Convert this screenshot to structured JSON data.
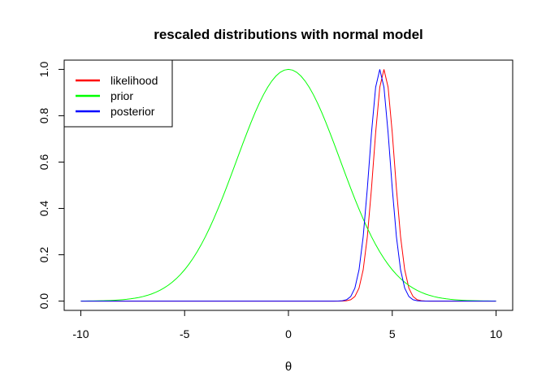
{
  "chart_data": {
    "type": "line",
    "title": "rescaled distributions with normal model",
    "xlabel": "θ",
    "ylabel": "",
    "xlim": [
      -10.8,
      10.8
    ],
    "ylim": [
      -0.04,
      1.04
    ],
    "x_ticks": [
      "-10",
      "-5",
      "0",
      "5",
      "10"
    ],
    "y_ticks": [
      "0.0",
      "0.2",
      "0.4",
      "0.6",
      "0.8",
      "1.0"
    ],
    "grid": false,
    "legend_position": "top-left",
    "series": [
      {
        "name": "likelihood",
        "color": "#ff0000",
        "curve": "normal",
        "mean": 4.6,
        "sd": 0.5
      },
      {
        "name": "prior",
        "color": "#00ff00",
        "curve": "normal",
        "mean": 0,
        "sd": 2.5
      },
      {
        "name": "posterior",
        "color": "#0000ff",
        "curve": "normal",
        "mean": 4.4,
        "sd": 0.5
      }
    ],
    "x_range": [
      -10,
      10
    ],
    "x_step": 0.2
  }
}
